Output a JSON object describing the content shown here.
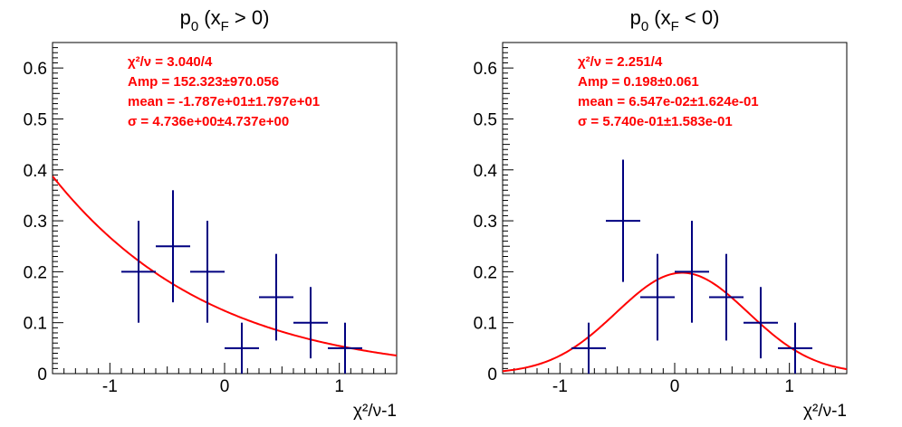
{
  "colors": {
    "data": "#000080",
    "fit": "#ff0000",
    "axis": "#000000"
  },
  "chart_data": [
    {
      "type": "scatter",
      "title": {
        "main": "p",
        "sub0": "0",
        "open": " (x",
        "subF": "F",
        "close": " > 0)"
      },
      "xlabel": "χ²/ν-1",
      "xlim": [
        -1.5,
        1.5
      ],
      "ylim": [
        0,
        0.65
      ],
      "x_ticks": [
        "-1",
        "0",
        "1"
      ],
      "y_ticks": [
        "0",
        "0.1",
        "0.2",
        "0.3",
        "0.4",
        "0.5",
        "0.6"
      ],
      "grid": false,
      "series": [
        {
          "style": "errorbar",
          "x": [
            -0.75,
            -0.45,
            -0.15,
            0.15,
            0.45,
            0.75,
            1.05
          ],
          "y": [
            0.2,
            0.25,
            0.2,
            0.05,
            0.15,
            0.1,
            0.05
          ],
          "x_err": 0.15,
          "y_err": [
            0.1,
            0.11,
            0.1,
            0.05,
            0.085,
            0.07,
            0.05
          ]
        },
        {
          "style": "gaussian-fit",
          "amp": 152.323,
          "mean": -17.87,
          "sigma": 4.736
        }
      ],
      "stats": [
        "χ²/ν = 3.040/4",
        "Amp = 152.323±970.056",
        "mean = -1.787e+01±1.797e+01",
        "σ = 4.736e+00±4.737e+00"
      ]
    },
    {
      "type": "scatter",
      "title": {
        "main": "p",
        "sub0": "0",
        "open": " (x",
        "subF": "F",
        "close": " < 0)"
      },
      "xlabel": "χ²/ν-1",
      "xlim": [
        -1.5,
        1.5
      ],
      "ylim": [
        0,
        0.65
      ],
      "x_ticks": [
        "-1",
        "0",
        "1"
      ],
      "y_ticks": [
        "0",
        "0.1",
        "0.2",
        "0.3",
        "0.4",
        "0.5",
        "0.6"
      ],
      "grid": false,
      "series": [
        {
          "style": "errorbar",
          "x": [
            -0.75,
            -0.45,
            -0.15,
            0.15,
            0.45,
            0.75,
            1.05
          ],
          "y": [
            0.05,
            0.3,
            0.15,
            0.2,
            0.15,
            0.1,
            0.05
          ],
          "x_err": 0.15,
          "y_err": [
            0.05,
            0.12,
            0.085,
            0.1,
            0.085,
            0.07,
            0.05
          ]
        },
        {
          "style": "gaussian-fit",
          "amp": 0.198,
          "mean": 0.06547,
          "sigma": 0.574
        }
      ],
      "stats": [
        "χ²/ν = 2.251/4",
        "Amp = 0.198±0.061",
        "mean = 6.547e-02±1.624e-01",
        "σ = 5.740e-01±1.583e-01"
      ]
    }
  ]
}
